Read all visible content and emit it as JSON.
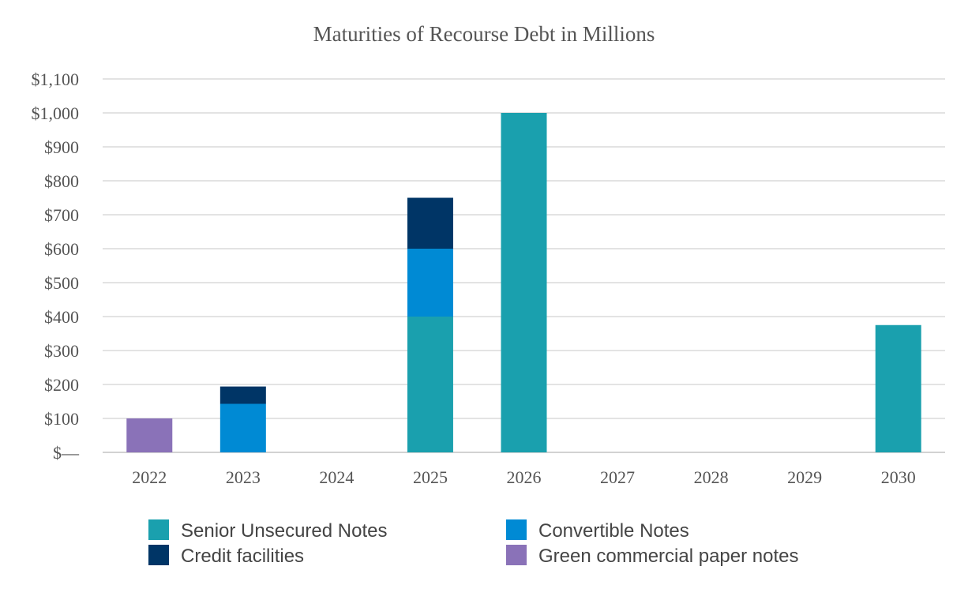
{
  "chart_data": {
    "type": "bar",
    "stacked": true,
    "title": "Maturities of Recourse Debt in Millions",
    "xlabel": "",
    "ylabel": "",
    "categories": [
      "2022",
      "2023",
      "2024",
      "2025",
      "2026",
      "2027",
      "2028",
      "2029",
      "2030"
    ],
    "series": [
      {
        "name": "Senior Unsecured Notes",
        "color": "#1aa0ae",
        "values": [
          0,
          0,
          0,
          400,
          1000,
          0,
          0,
          0,
          375
        ]
      },
      {
        "name": "Convertible Notes",
        "color": "#008ad4",
        "values": [
          0,
          143,
          0,
          200,
          0,
          0,
          0,
          0,
          0
        ]
      },
      {
        "name": "Credit facilities",
        "color": "#003566",
        "values": [
          0,
          51,
          0,
          150,
          0,
          0,
          0,
          0,
          0
        ]
      },
      {
        "name": "Green commercial paper notes",
        "color": "#8a72b8",
        "values": [
          100,
          0,
          0,
          0,
          0,
          0,
          0,
          0,
          0
        ]
      }
    ],
    "ylim": [
      0,
      1100
    ],
    "yticks": [
      0,
      100,
      200,
      300,
      400,
      500,
      600,
      700,
      800,
      900,
      1000,
      1100
    ],
    "ytick_labels": [
      "$—",
      "$100",
      "$200",
      "$300",
      "$400",
      "$500",
      "$600",
      "$700",
      "$800",
      "$900",
      "$1,000",
      "$1,100"
    ],
    "grid": true,
    "legend_position": "bottom"
  },
  "colors": {
    "grid": "#e3e3e3",
    "axis": "#d2d2d2",
    "text": "#555555"
  }
}
